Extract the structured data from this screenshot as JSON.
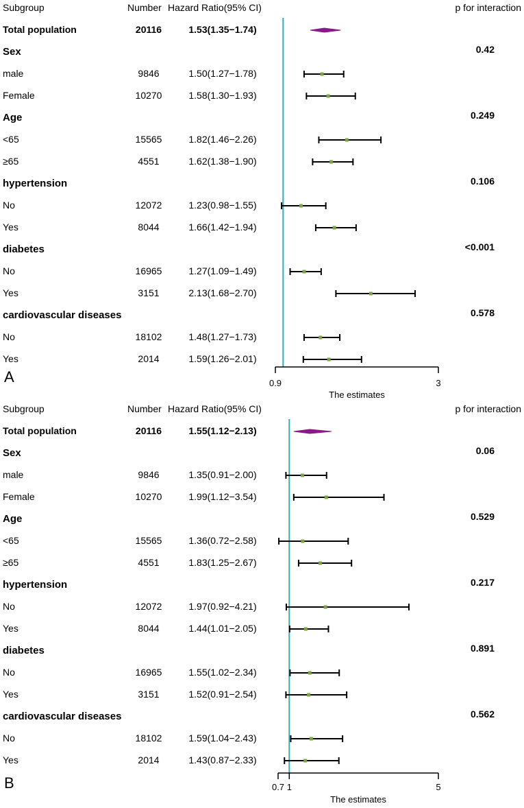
{
  "chart_data": [
    {
      "type": "forest",
      "panel_label": "A",
      "columns": {
        "subgroup": "Subgroup",
        "number": "Number",
        "hr": "Hazard Ratio(95% CI)",
        "p": "p for interaction"
      },
      "xlim": [
        0.9,
        3
      ],
      "reference_line": 1,
      "x_ticks": [
        "0.9",
        "3"
      ],
      "xlabel": "The estimates",
      "rows": [
        {
          "kind": "total",
          "label": "Total population",
          "n": "20116",
          "hr_text": "1.53(1.35−1.74)",
          "hr": 1.53,
          "lo": 1.35,
          "hi": 1.74
        },
        {
          "kind": "group",
          "label": "Sex",
          "p": "0.42"
        },
        {
          "kind": "sub",
          "label": "male",
          "n": "9846",
          "hr_text": "1.50(1.27−1.78)",
          "hr": 1.5,
          "lo": 1.27,
          "hi": 1.78
        },
        {
          "kind": "sub",
          "label": "Female",
          "n": "10270",
          "hr_text": "1.58(1.30−1.93)",
          "hr": 1.58,
          "lo": 1.3,
          "hi": 1.93
        },
        {
          "kind": "group",
          "label": "Age",
          "p": "0.249"
        },
        {
          "kind": "sub",
          "label": "<65",
          "n": "15565",
          "hr_text": "1.82(1.46−2.26)",
          "hr": 1.82,
          "lo": 1.46,
          "hi": 2.26
        },
        {
          "kind": "sub",
          "label": "≥65",
          "n": "4551",
          "hr_text": "1.62(1.38−1.90)",
          "hr": 1.62,
          "lo": 1.38,
          "hi": 1.9
        },
        {
          "kind": "group",
          "label": "hypertension",
          "p": "0.106"
        },
        {
          "kind": "sub",
          "label": "No",
          "n": "12072",
          "hr_text": "1.23(0.98−1.55)",
          "hr": 1.23,
          "lo": 0.98,
          "hi": 1.55
        },
        {
          "kind": "sub",
          "label": "Yes",
          "n": "8044",
          "hr_text": "1.66(1.42−1.94)",
          "hr": 1.66,
          "lo": 1.42,
          "hi": 1.94
        },
        {
          "kind": "group",
          "label": "diabetes",
          "p": "<0.001"
        },
        {
          "kind": "sub",
          "label": "No",
          "n": "16965",
          "hr_text": "1.27(1.09−1.49)",
          "hr": 1.27,
          "lo": 1.09,
          "hi": 1.49
        },
        {
          "kind": "sub",
          "label": "Yes",
          "n": "3151",
          "hr_text": "2.13(1.68−2.70)",
          "hr": 2.13,
          "lo": 1.68,
          "hi": 2.7
        },
        {
          "kind": "group",
          "label": "cardiovascular diseases",
          "p": "0.578"
        },
        {
          "kind": "sub",
          "label": "No",
          "n": "18102",
          "hr_text": "1.48(1.27−1.73)",
          "hr": 1.48,
          "lo": 1.27,
          "hi": 1.73
        },
        {
          "kind": "sub",
          "label": "Yes",
          "n": "2014",
          "hr_text": "1.59(1.26−2.01)",
          "hr": 1.59,
          "lo": 1.26,
          "hi": 2.01
        }
      ]
    },
    {
      "type": "forest",
      "panel_label": "B",
      "columns": {
        "subgroup": "Subgroup",
        "number": "Number",
        "hr": "Hazard Ratio(95% CI)",
        "p": "p for interaction"
      },
      "xlim": [
        0.7,
        5
      ],
      "reference_line": 1,
      "x_ticks": [
        "0.7",
        "1",
        "5"
      ],
      "xlabel": "The estimates",
      "rows": [
        {
          "kind": "total",
          "label": "Total population",
          "n": "20116",
          "hr_text": "1.55(1.12−2.13)",
          "hr": 1.55,
          "lo": 1.12,
          "hi": 2.13
        },
        {
          "kind": "group",
          "label": "Sex",
          "p": "0.06"
        },
        {
          "kind": "sub",
          "label": "male",
          "n": "9846",
          "hr_text": "1.35(0.91−2.00)",
          "hr": 1.35,
          "lo": 0.91,
          "hi": 2.0
        },
        {
          "kind": "sub",
          "label": "Female",
          "n": "10270",
          "hr_text": "1.99(1.12−3.54)",
          "hr": 1.99,
          "lo": 1.12,
          "hi": 3.54
        },
        {
          "kind": "group",
          "label": "Age",
          "p": "0.529"
        },
        {
          "kind": "sub",
          "label": "<65",
          "n": "15565",
          "hr_text": "1.36(0.72−2.58)",
          "hr": 1.36,
          "lo": 0.72,
          "hi": 2.58
        },
        {
          "kind": "sub",
          "label": "≥65",
          "n": "4551",
          "hr_text": "1.83(1.25−2.67)",
          "hr": 1.83,
          "lo": 1.25,
          "hi": 2.67
        },
        {
          "kind": "group",
          "label": "hypertension",
          "p": "0.217"
        },
        {
          "kind": "sub",
          "label": "No",
          "n": "12072",
          "hr_text": "1.97(0.92−4.21)",
          "hr": 1.97,
          "lo": 0.92,
          "hi": 4.21
        },
        {
          "kind": "sub",
          "label": "Yes",
          "n": "8044",
          "hr_text": "1.44(1.01−2.05)",
          "hr": 1.44,
          "lo": 1.01,
          "hi": 2.05
        },
        {
          "kind": "group",
          "label": "diabetes",
          "p": "0.891"
        },
        {
          "kind": "sub",
          "label": "No",
          "n": "16965",
          "hr_text": "1.55(1.02−2.34)",
          "hr": 1.55,
          "lo": 1.02,
          "hi": 2.34
        },
        {
          "kind": "sub",
          "label": "Yes",
          "n": "3151",
          "hr_text": "1.52(0.91−2.54)",
          "hr": 1.52,
          "lo": 0.91,
          "hi": 2.54
        },
        {
          "kind": "group",
          "label": "cardiovascular diseases",
          "p": "0.562"
        },
        {
          "kind": "sub",
          "label": "No",
          "n": "18102",
          "hr_text": "1.59(1.04−2.43)",
          "hr": 1.59,
          "lo": 1.04,
          "hi": 2.43
        },
        {
          "kind": "sub",
          "label": "Yes",
          "n": "2014",
          "hr_text": "1.43(0.87−2.33)",
          "hr": 1.43,
          "lo": 0.87,
          "hi": 2.33
        }
      ]
    }
  ],
  "colors": {
    "reference_line": "#2ab0b8",
    "total_diamond": "#8b1a89",
    "point": "#7aa63a",
    "ci_line": "#000000"
  }
}
